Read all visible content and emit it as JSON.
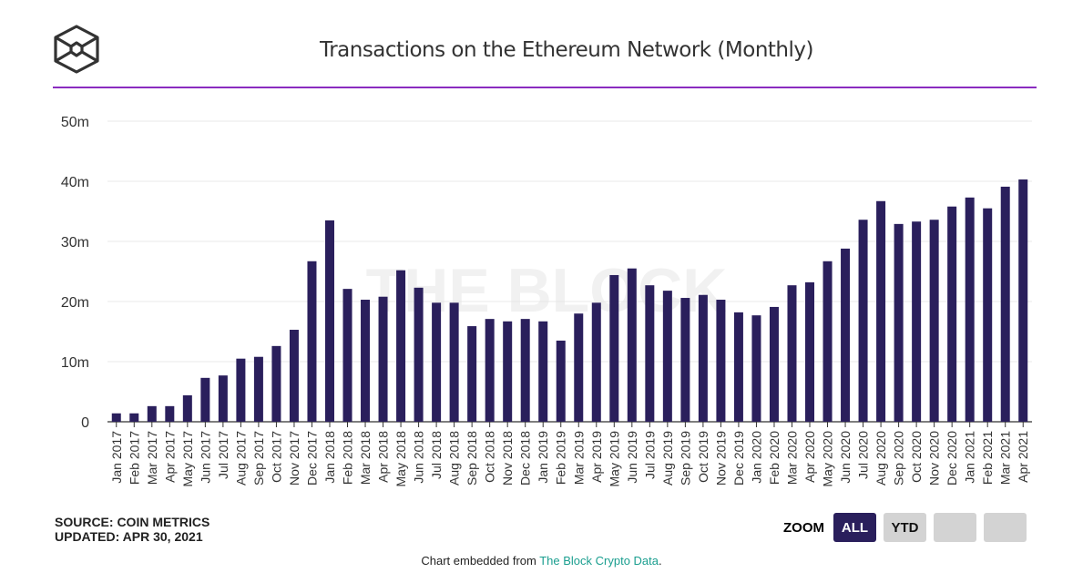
{
  "header": {
    "title": "Transactions on the Ethereum Network (Monthly)",
    "logo": "the-block-cube-logo"
  },
  "watermark": "THE BLOCK",
  "colors": {
    "bar": "#2a1f5c",
    "rule": "#8a2cc0",
    "link": "#1a9e8f"
  },
  "chart_data": {
    "type": "bar",
    "title": "Transactions on the Ethereum Network (Monthly)",
    "ylim": [
      0,
      50000000
    ],
    "yticks": [
      "0",
      "10m",
      "20m",
      "30m",
      "40m",
      "50m"
    ],
    "grid": true,
    "categories": [
      "Jan 2017",
      "Feb 2017",
      "Mar 2017",
      "Apr 2017",
      "May 2017",
      "Jun 2017",
      "Jul 2017",
      "Aug 2017",
      "Sep 2017",
      "Oct 2017",
      "Nov 2017",
      "Dec 2017",
      "Jan 2018",
      "Feb 2018",
      "Mar 2018",
      "Apr 2018",
      "May 2018",
      "Jun 2018",
      "Jul 2018",
      "Aug 2018",
      "Sep 2018",
      "Oct 2018",
      "Nov 2018",
      "Dec 2018",
      "Jan 2019",
      "Feb 2019",
      "Mar 2019",
      "Apr 2019",
      "May 2019",
      "Jun 2019",
      "Jul 2019",
      "Aug 2019",
      "Sep 2019",
      "Oct 2019",
      "Nov 2019",
      "Dec 2019",
      "Jan 2020",
      "Feb 2020",
      "Mar 2020",
      "Apr 2020",
      "May 2020",
      "Jun 2020",
      "Jul 2020",
      "Aug 2020",
      "Sep 2020",
      "Oct 2020",
      "Nov 2020",
      "Dec 2020",
      "Jan 2021",
      "Feb 2021",
      "Mar 2021",
      "Apr 2021"
    ],
    "values": [
      1400000,
      1400000,
      2600000,
      2600000,
      4400000,
      7300000,
      7700000,
      10500000,
      10800000,
      12600000,
      15300000,
      26700000,
      33500000,
      22100000,
      20300000,
      20800000,
      25200000,
      22300000,
      19800000,
      19800000,
      15900000,
      17100000,
      16700000,
      17100000,
      16700000,
      13500000,
      18000000,
      19800000,
      24400000,
      25500000,
      22700000,
      21800000,
      20600000,
      21100000,
      20300000,
      18200000,
      17700000,
      19100000,
      22700000,
      23200000,
      26700000,
      28800000,
      33600000,
      36700000,
      32900000,
      33300000,
      33600000,
      35800000,
      37300000,
      35500000,
      39100000,
      40300000
    ]
  },
  "footer": {
    "source": "SOURCE: COIN METRICS",
    "updated": "UPDATED: APR 30, 2021",
    "embed_prefix": "Chart embedded from ",
    "embed_link": "The Block Crypto Data",
    "embed_suffix": "."
  },
  "zoom": {
    "label": "ZOOM",
    "buttons": [
      {
        "label": "ALL",
        "active": true
      },
      {
        "label": "YTD",
        "active": false
      },
      {
        "label": "",
        "active": false
      },
      {
        "label": "",
        "active": false
      }
    ]
  }
}
